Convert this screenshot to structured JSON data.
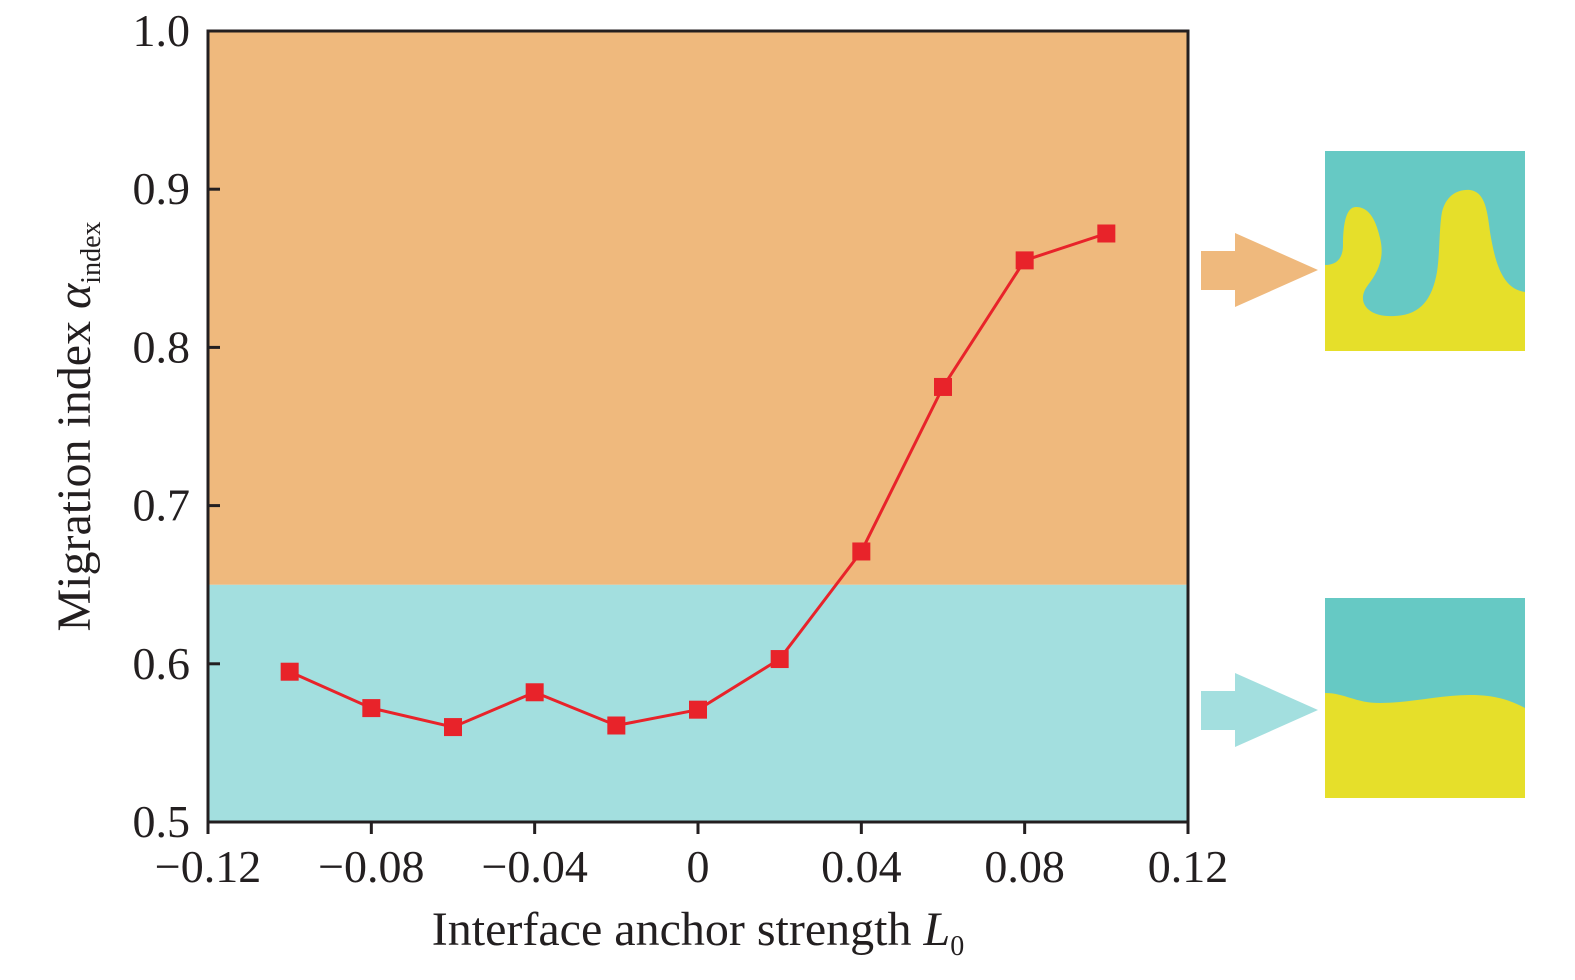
{
  "chart_data": {
    "type": "line",
    "xlabel": "Interface anchor strength",
    "xlabel_symbol": "L",
    "xlabel_subscript": "0",
    "ylabel": "Migration index",
    "ylabel_symbol": "α",
    "ylabel_subscript": "index",
    "xlim": [
      -0.12,
      0.12
    ],
    "ylim": [
      0.5,
      1.0
    ],
    "x_ticks": [
      -0.12,
      -0.08,
      -0.04,
      0,
      0.04,
      0.08,
      0.12
    ],
    "x_tick_labels": [
      "−0.12",
      "−0.08",
      "−0.04",
      "0",
      "0.04",
      "0.08",
      "0.12"
    ],
    "y_ticks": [
      0.5,
      0.6,
      0.7,
      0.8,
      0.9,
      1.0
    ],
    "y_tick_labels": [
      "0.5",
      "0.6",
      "0.7",
      "0.8",
      "0.9",
      "1.0"
    ],
    "grid": false,
    "threshold": 0.65,
    "regions": [
      {
        "from": 0.5,
        "to": 0.65,
        "color": "#a3dfdf"
      },
      {
        "from": 0.65,
        "to": 1.0,
        "color": "#efb97d"
      }
    ],
    "series": [
      {
        "color": "#e8232a",
        "marker": "square",
        "x": [
          -0.1,
          -0.08,
          -0.06,
          -0.04,
          -0.02,
          0,
          0.02,
          0.04,
          0.06,
          0.08,
          0.1
        ],
        "y": [
          0.595,
          0.572,
          0.56,
          0.582,
          0.561,
          0.571,
          0.603,
          0.671,
          0.775,
          0.855,
          0.872
        ]
      }
    ]
  },
  "insets": [
    {
      "arrow_color": "#efb97d",
      "top_color": "#66c9c4",
      "bottom_color": "#e6df2a",
      "pattern": "fingering"
    },
    {
      "arrow_color": "#a3dfdf",
      "top_color": "#66c9c4",
      "bottom_color": "#e6df2a",
      "pattern": "flat"
    }
  ]
}
